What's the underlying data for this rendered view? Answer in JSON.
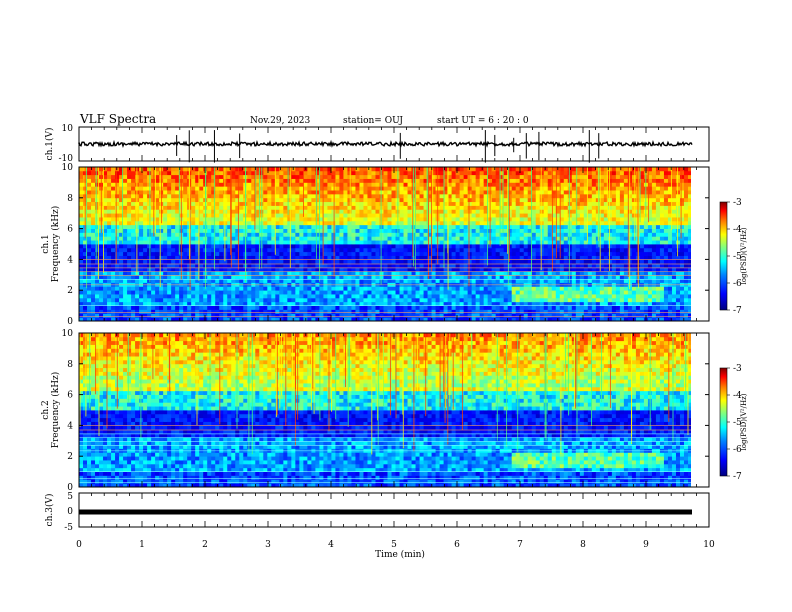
{
  "header": {
    "title": "VLF Spectra",
    "date": "Nov.29, 2023",
    "station": "station= OUJ",
    "start_time": "start  UT =   6 : 20 : 0"
  },
  "colors": {
    "colormap": [
      "#00007f",
      "#0000ff",
      "#0080ff",
      "#00ffff",
      "#80ff80",
      "#ffff00",
      "#ff8000",
      "#ff0000",
      "#7f0000"
    ]
  },
  "chart_data": [
    {
      "id": "ch1-waveform",
      "type": "line",
      "ylabel": "ch.1(V)",
      "ylim": [
        -10,
        10
      ],
      "yticks": [
        "10",
        "-10"
      ],
      "series_baseline": 0,
      "noise_level": "±1",
      "spike_times_min": [
        1.55,
        1.75,
        2.15,
        2.55,
        5.1,
        6.45,
        6.6,
        6.9,
        7.1,
        7.3,
        8.1,
        8.25
      ]
    },
    {
      "id": "ch1-spectrogram",
      "type": "heatmap",
      "ylabel_line1": "ch.1",
      "ylabel_line2": "Frequency (kHz)",
      "ylim": [
        0,
        10
      ],
      "yticks": [
        "0",
        "2",
        "4",
        "6",
        "8",
        "10"
      ],
      "colorbar": {
        "label": "log(PSD)(V²/Hz)",
        "range": [
          -7,
          -3
        ],
        "ticks": [
          "-3",
          "-4",
          "-5",
          "-6",
          "-7"
        ]
      }
    },
    {
      "id": "ch2-spectrogram",
      "type": "heatmap",
      "ylabel_line1": "ch.2",
      "ylabel_line2": "Frequency (kHz)",
      "ylim": [
        0,
        10
      ],
      "yticks": [
        "0",
        "2",
        "4",
        "6",
        "8",
        "10"
      ],
      "colorbar": {
        "label": "log(PSD)(V²/Hz)",
        "range": [
          -7,
          -3
        ],
        "ticks": [
          "-3",
          "-4",
          "-5",
          "-6",
          "-7"
        ]
      }
    },
    {
      "id": "ch3-waveform",
      "type": "line",
      "ylabel": "ch.3(V)",
      "ylim": [
        -5,
        5
      ],
      "yticks": [
        "5",
        "0",
        "-5"
      ],
      "series_baseline": 0
    }
  ],
  "xaxis": {
    "label": "Time (min)",
    "xlim": [
      0,
      10
    ],
    "ticks": [
      "0",
      "1",
      "2",
      "3",
      "4",
      "5",
      "6",
      "7",
      "8",
      "9",
      "10"
    ]
  }
}
